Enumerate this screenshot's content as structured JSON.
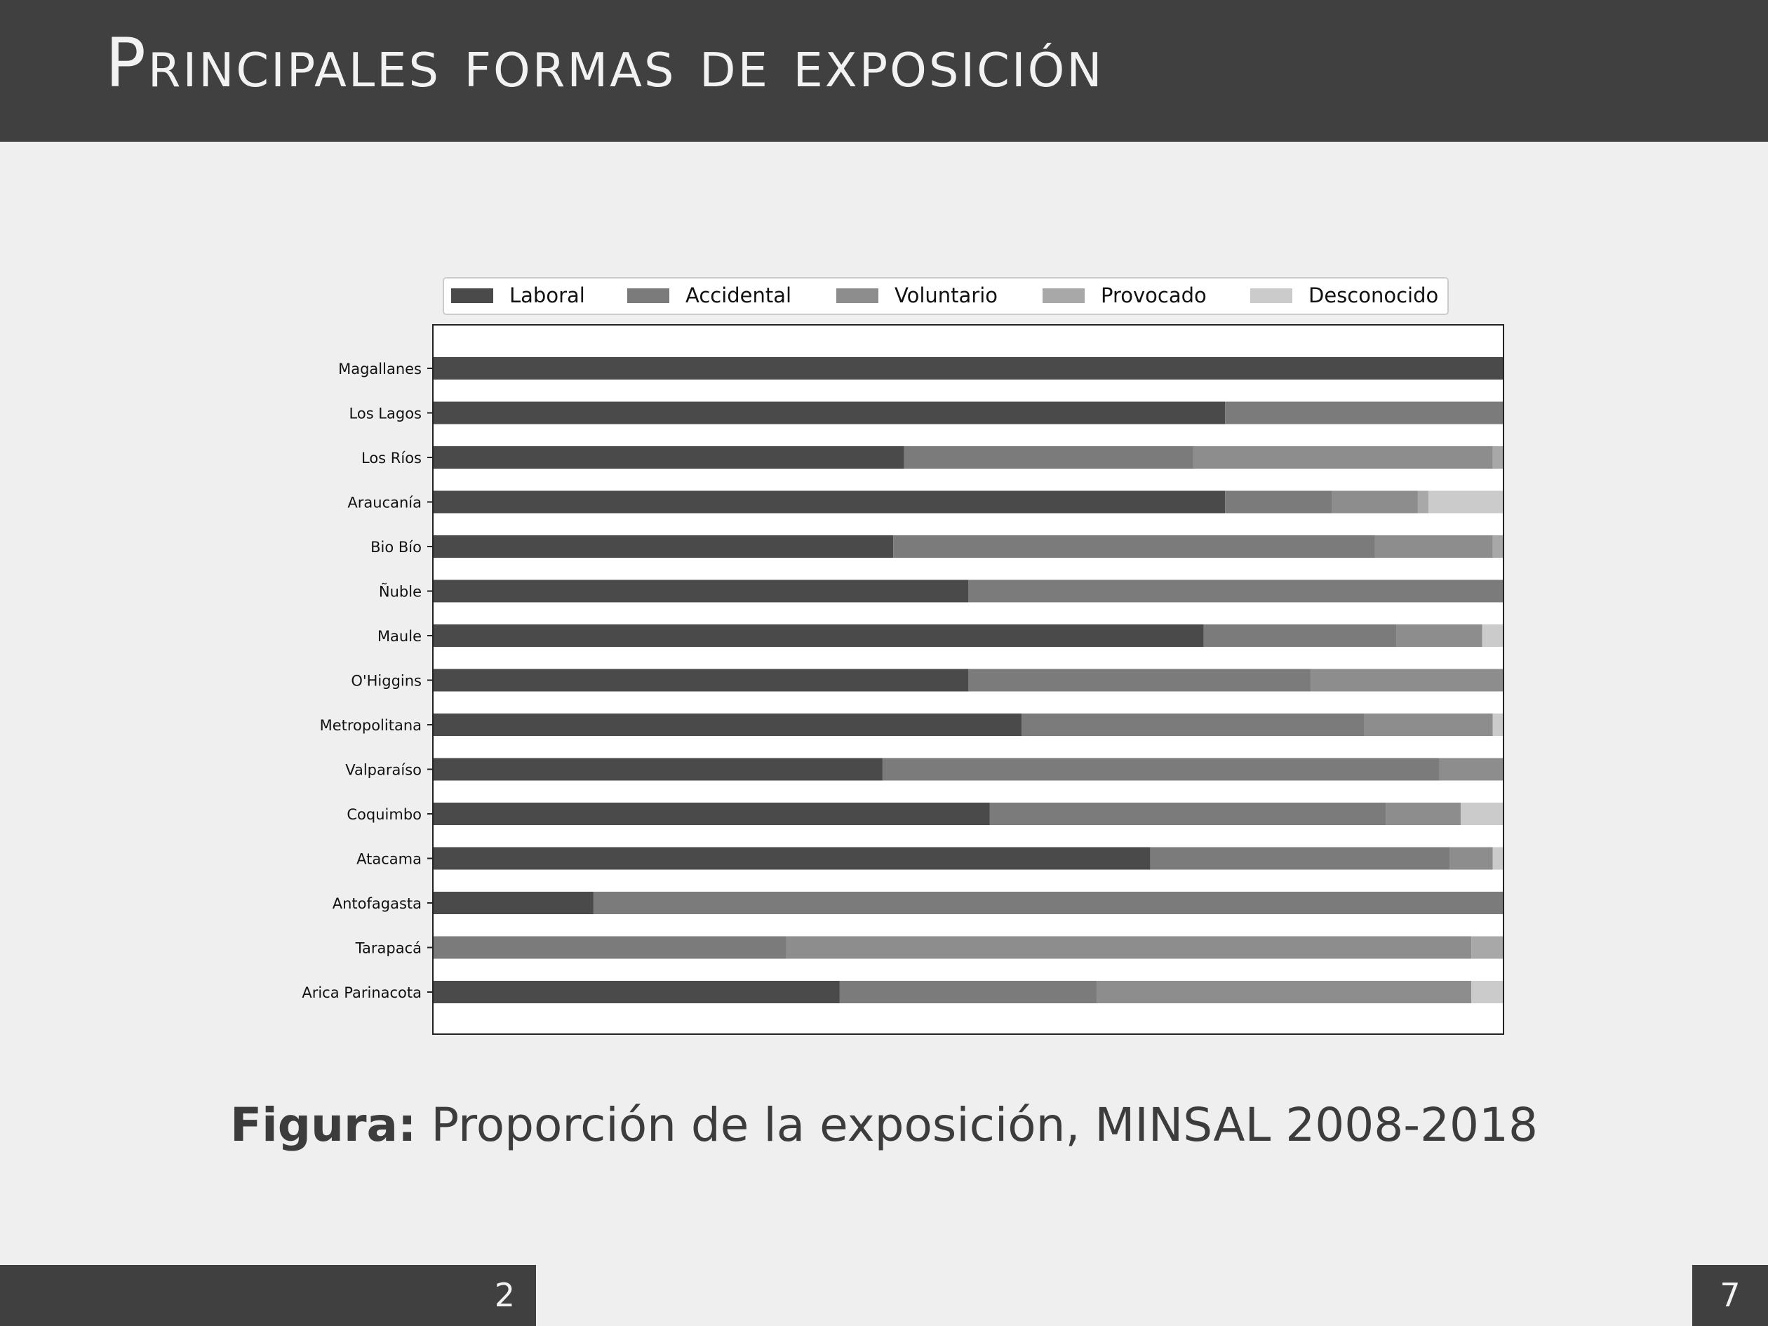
{
  "slide": {
    "title": "Principales formas de exposición",
    "caption_label": "Figura:",
    "caption_text": " Proporción de la exposición, MINSAL 2008-2018",
    "section_number": "2",
    "page_number": "7"
  },
  "chart_data": {
    "type": "bar",
    "orientation": "horizontal",
    "stacked": true,
    "categories": [
      "Magallanes",
      "Los Lagos",
      "Los Ríos",
      "Araucanía",
      "Bio Bío",
      "Ñuble",
      "Maule",
      "O'Higgins",
      "Metropolitana",
      "Valparaíso",
      "Coquimbo",
      "Atacama",
      "Antofagasta",
      "Tarapacá",
      "Arica Parinacota"
    ],
    "series": [
      {
        "name": "Laboral",
        "color": "#4a4a4a",
        "values": [
          1.0,
          0.74,
          0.44,
          0.74,
          0.43,
          0.5,
          0.72,
          0.5,
          0.55,
          0.42,
          0.52,
          0.67,
          0.15,
          0.0,
          0.38
        ]
      },
      {
        "name": "Accidental",
        "color": "#7b7b7b",
        "values": [
          0.0,
          0.26,
          0.27,
          0.1,
          0.45,
          0.5,
          0.18,
          0.32,
          0.32,
          0.52,
          0.37,
          0.28,
          0.85,
          0.33,
          0.24
        ]
      },
      {
        "name": "Voluntario",
        "color": "#8d8d8d",
        "values": [
          0.0,
          0.0,
          0.28,
          0.08,
          0.11,
          0.0,
          0.08,
          0.18,
          0.12,
          0.06,
          0.07,
          0.04,
          0.0,
          0.64,
          0.35
        ]
      },
      {
        "name": "Provocado",
        "color": "#a8a8a8",
        "values": [
          0.0,
          0.0,
          0.01,
          0.01,
          0.01,
          0.0,
          0.0,
          0.0,
          0.0,
          0.0,
          0.0,
          0.0,
          0.0,
          0.03,
          0.0
        ]
      },
      {
        "name": "Desconocido",
        "color": "#cbcbcb",
        "values": [
          0.0,
          0.0,
          0.0,
          0.07,
          0.0,
          0.0,
          0.02,
          0.0,
          0.01,
          0.0,
          0.04,
          0.01,
          0.0,
          0.0,
          0.03
        ]
      }
    ],
    "xlim": [
      0,
      1
    ],
    "legend_position": "top",
    "grid": false
  }
}
